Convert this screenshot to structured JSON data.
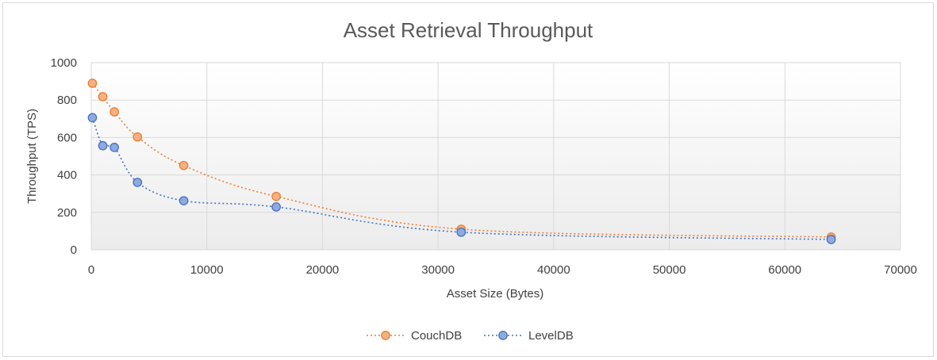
{
  "chart_data": {
    "type": "scatter",
    "title": "Asset Retrieval Throughput",
    "xlabel": "Asset Size (Bytes)",
    "ylabel": "Throughput (TPS)",
    "xlim": [
      0,
      70000
    ],
    "ylim": [
      0,
      1000
    ],
    "x_ticks": [
      0,
      10000,
      20000,
      30000,
      40000,
      50000,
      60000,
      70000
    ],
    "y_ticks": [
      0,
      200,
      400,
      600,
      800,
      1000
    ],
    "x_tick_labels": [
      "0",
      "10000",
      "20000",
      "30000",
      "40000",
      "50000",
      "60000",
      "70000"
    ],
    "y_tick_labels": [
      "0",
      "200",
      "400",
      "600",
      "800",
      "1000"
    ],
    "grid": true,
    "legend_position": "bottom",
    "line_style": "dotted smooth",
    "series": [
      {
        "name": "CouchDB",
        "color": "#ed7d31",
        "fill": "#f4b183",
        "points": [
          {
            "x": 100,
            "y": 890
          },
          {
            "x": 1000,
            "y": 818
          },
          {
            "x": 2000,
            "y": 737
          },
          {
            "x": 4000,
            "y": 603
          },
          {
            "x": 8000,
            "y": 450
          },
          {
            "x": 16000,
            "y": 285
          },
          {
            "x": 32000,
            "y": 110
          },
          {
            "x": 64000,
            "y": 68
          }
        ]
      },
      {
        "name": "LevelDB",
        "color": "#4472c4",
        "fill": "#8faadc",
        "points": [
          {
            "x": 100,
            "y": 706
          },
          {
            "x": 1000,
            "y": 556
          },
          {
            "x": 2000,
            "y": 547
          },
          {
            "x": 4000,
            "y": 360
          },
          {
            "x": 8000,
            "y": 262
          },
          {
            "x": 16000,
            "y": 229
          },
          {
            "x": 32000,
            "y": 94
          },
          {
            "x": 64000,
            "y": 55
          }
        ]
      }
    ]
  }
}
